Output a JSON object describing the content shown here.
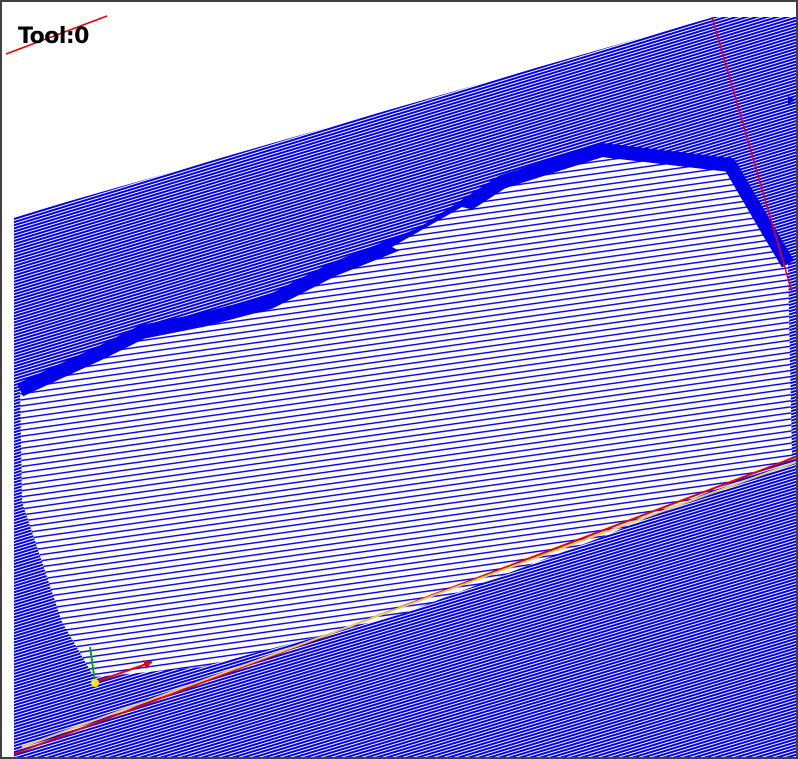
{
  "viewport": {
    "label": "Tool:0"
  }
}
